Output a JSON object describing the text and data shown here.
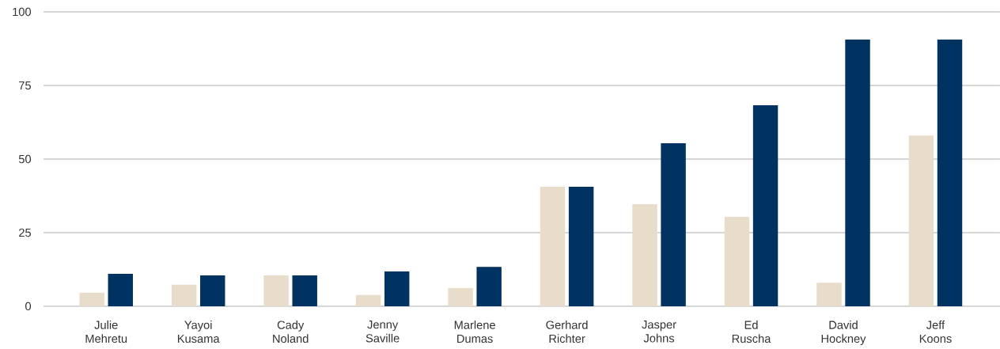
{
  "chart_data": {
    "type": "bar",
    "categories": [
      "Julie Mehretu",
      "Yayoi Kusama",
      "Cady Noland",
      "Jenny Saville",
      "Marlene Dumas",
      "Gerhard Richter",
      "Jasper Johns",
      "Ed Ruscha",
      "David Hockney",
      "Jeff Koons"
    ],
    "series": [
      {
        "color": "#e8dccb",
        "values": [
          4.6,
          7.3,
          10.5,
          3.8,
          6.2,
          40.6,
          34.7,
          30.4,
          8,
          58
        ]
      },
      {
        "color": "#003262",
        "values": [
          11,
          10.5,
          10.5,
          11.8,
          13.4,
          40.6,
          55.4,
          68.3,
          90.6,
          90.6
        ]
      }
    ],
    "ylim": [
      0,
      100
    ],
    "yticks": [
      0,
      25,
      50,
      75,
      100
    ],
    "grid": "y"
  }
}
